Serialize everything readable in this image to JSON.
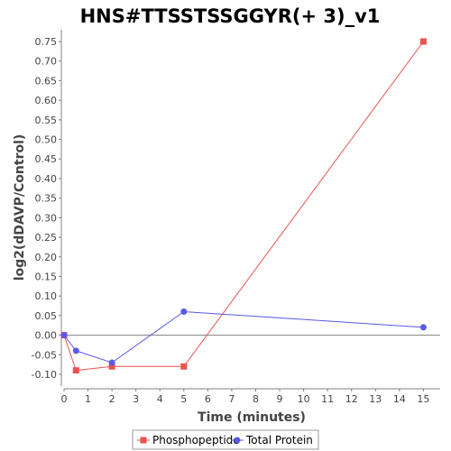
{
  "chart_data": {
    "type": "line",
    "title": "HNS#TTSSTSSGGYR(+ 3)_v1",
    "xlabel": "Time (minutes)",
    "ylabel": "log2(dDAVP/Control)",
    "xlim": [
      0,
      15.7
    ],
    "ylim": [
      -0.13,
      0.78
    ],
    "xticks": [
      0,
      1,
      2,
      3,
      4,
      5,
      6,
      7,
      8,
      9,
      10,
      11,
      12,
      13,
      14,
      15
    ],
    "yticks": [
      -0.1,
      -0.05,
      0.0,
      0.05,
      0.1,
      0.15,
      0.2,
      0.25,
      0.3,
      0.35,
      0.4,
      0.45,
      0.5,
      0.55,
      0.6,
      0.65,
      0.7,
      0.75
    ],
    "series": [
      {
        "name": "Phosphopeptide",
        "color": "#e8534f",
        "marker": "square",
        "x": [
          0,
          0.5,
          2,
          5,
          15
        ],
        "y": [
          0.0,
          -0.09,
          -0.08,
          -0.08,
          0.75
        ]
      },
      {
        "name": "Total Protein",
        "color": "#5959ea",
        "marker": "circle",
        "x": [
          0,
          0.5,
          2,
          5,
          15
        ],
        "y": [
          0.0,
          -0.04,
          -0.07,
          0.06,
          0.02
        ]
      }
    ],
    "zero_line": true,
    "grid": false,
    "legend_position": "bottom"
  }
}
